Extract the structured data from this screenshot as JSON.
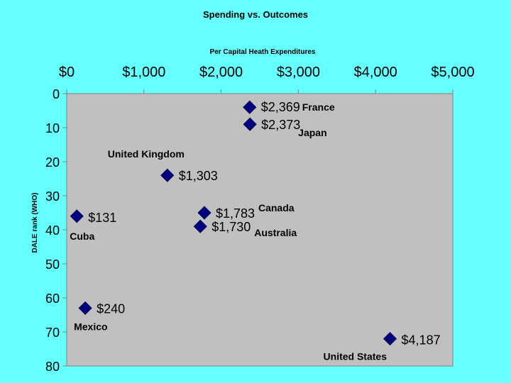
{
  "chart_data": {
    "type": "scatter",
    "title": "Spending vs. Outcomes",
    "xlabel": "Per Capital Heath Expenditures",
    "ylabel": "DALE rank (WHO)",
    "xlim": [
      0,
      5000
    ],
    "ylim": [
      0,
      80
    ],
    "y_inverted": true,
    "x_axis_position": "top",
    "x_ticks": [
      "$0",
      "$1,000",
      "$2,000",
      "$3,000",
      "$4,000",
      "$5,000"
    ],
    "y_ticks": [
      "0",
      "10",
      "20",
      "30",
      "40",
      "50",
      "60",
      "70",
      "80"
    ],
    "plot_background": "#c0c0c0",
    "page_background": "#66ffff",
    "marker_color": "#000080",
    "marker_shape": "diamond",
    "points": [
      {
        "name": "France",
        "x": 2369,
        "y": 4,
        "label": "$2,369"
      },
      {
        "name": "Japan",
        "x": 2373,
        "y": 9,
        "label": "$2,373"
      },
      {
        "name": "United Kingdom",
        "x": 1303,
        "y": 24,
        "label": "$1,303"
      },
      {
        "name": "Canada",
        "x": 1783,
        "y": 35,
        "label": "$1,783"
      },
      {
        "name": "Australia",
        "x": 1730,
        "y": 39,
        "label": "$1,730"
      },
      {
        "name": "Cuba",
        "x": 131,
        "y": 36,
        "label": "$131"
      },
      {
        "name": "Mexico",
        "x": 240,
        "y": 63,
        "label": "$240"
      },
      {
        "name": "United States",
        "x": 4187,
        "y": 72,
        "label": "$4,187"
      }
    ]
  }
}
